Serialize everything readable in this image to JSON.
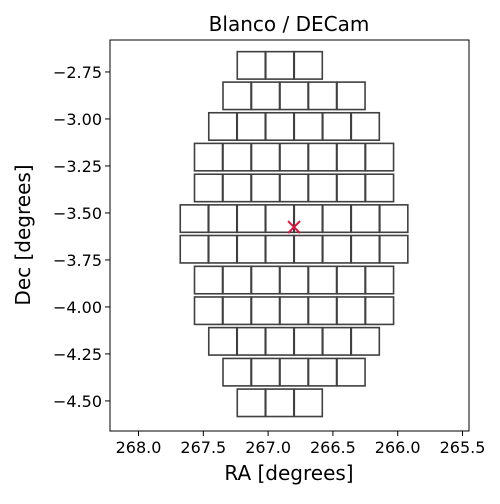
{
  "chart_data": {
    "type": "scatter",
    "title": "Blanco / DECam",
    "xlabel": "RA [degrees]",
    "ylabel": "Dec [degrees]",
    "xlim": [
      268.22,
      265.45
    ],
    "ylim": [
      -4.66,
      -2.58
    ],
    "x_inverted": true,
    "grid": false,
    "x_ticks": [
      {
        "value": 268.0,
        "label": "268.0"
      },
      {
        "value": 267.5,
        "label": "267.5"
      },
      {
        "value": 267.0,
        "label": "267.0"
      },
      {
        "value": 266.5,
        "label": "266.5"
      },
      {
        "value": 266.0,
        "label": "266.0"
      },
      {
        "value": 265.5,
        "label": "265.5"
      }
    ],
    "y_ticks": [
      {
        "value": -2.75,
        "label": "−2.75"
      },
      {
        "value": -3.0,
        "label": "−3.00"
      },
      {
        "value": -3.25,
        "label": "−3.25"
      },
      {
        "value": -3.5,
        "label": "−3.50"
      },
      {
        "value": -3.75,
        "label": "−3.75"
      },
      {
        "value": -4.0,
        "label": "−4.00"
      },
      {
        "value": -4.25,
        "label": "−4.25"
      },
      {
        "value": -4.5,
        "label": "−4.50"
      }
    ],
    "pointing": {
      "ra": 266.8,
      "dec": -3.575,
      "marker": "x",
      "color": "#dc143c"
    },
    "ccd_style": {
      "edge_color": "#404040",
      "fill": "none"
    },
    "ccd_size": {
      "ra": 0.216,
      "dec": 0.146
    },
    "ccd_rows": [
      {
        "dec": -2.715,
        "ra_centers": [
          267.13,
          266.91,
          266.69
        ]
      },
      {
        "dec": -2.877,
        "ra_centers": [
          267.24,
          267.02,
          266.8,
          266.58,
          266.36
        ]
      },
      {
        "dec": -3.04,
        "ra_centers": [
          267.35,
          267.13,
          266.91,
          266.69,
          266.47,
          266.25
        ]
      },
      {
        "dec": -3.203,
        "ra_centers": [
          267.46,
          267.24,
          267.02,
          266.8,
          266.58,
          266.36,
          266.14
        ]
      },
      {
        "dec": -3.367,
        "ra_centers": [
          267.46,
          267.24,
          267.02,
          266.8,
          266.58,
          266.36,
          266.14
        ]
      },
      {
        "dec": -3.53,
        "ra_centers": [
          267.57,
          267.35,
          267.13,
          266.91,
          266.69,
          266.47,
          266.25,
          266.03
        ]
      },
      {
        "dec": -3.693,
        "ra_centers": [
          267.57,
          267.35,
          267.13,
          266.91,
          266.69,
          266.47,
          266.25,
          266.03
        ]
      },
      {
        "dec": -3.857,
        "ra_centers": [
          267.46,
          267.24,
          267.02,
          266.8,
          266.58,
          266.36,
          266.14
        ]
      },
      {
        "dec": -4.02,
        "ra_centers": [
          267.46,
          267.24,
          267.02,
          266.8,
          266.58,
          266.36,
          266.14
        ]
      },
      {
        "dec": -4.183,
        "ra_centers": [
          267.35,
          267.13,
          266.91,
          266.69,
          266.47,
          266.25
        ]
      },
      {
        "dec": -4.347,
        "ra_centers": [
          267.24,
          267.02,
          266.8,
          266.58,
          266.36
        ]
      },
      {
        "dec": -4.51,
        "ra_centers": [
          267.13,
          266.91,
          266.69
        ]
      }
    ]
  }
}
